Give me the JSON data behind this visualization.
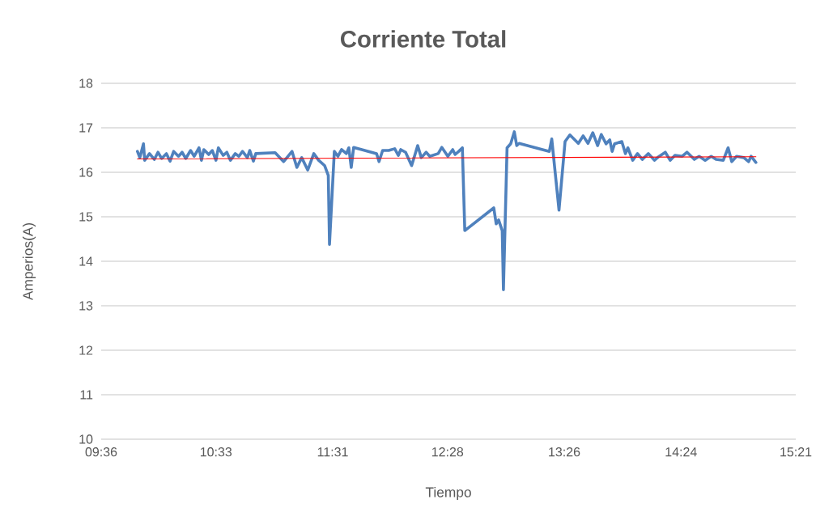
{
  "chart_data": {
    "type": "line",
    "title": "Corriente Total",
    "xlabel": "Tiempo",
    "ylabel": "Amperios(A)",
    "xlim": [
      9.6,
      15.35
    ],
    "ylim": [
      10,
      18
    ],
    "xticks": [
      {
        "value": 9.6,
        "label": "09:36"
      },
      {
        "value": 10.55,
        "label": "10:33"
      },
      {
        "value": 11.5167,
        "label": "11:31"
      },
      {
        "value": 12.4667,
        "label": "12:28"
      },
      {
        "value": 13.4333,
        "label": "13:26"
      },
      {
        "value": 14.4,
        "label": "14:24"
      },
      {
        "value": 15.35,
        "label": "15:21"
      }
    ],
    "yticks": [
      10,
      11,
      12,
      13,
      14,
      15,
      16,
      17,
      18
    ],
    "grid": "y",
    "legend": false,
    "marker": "none",
    "line_style": "solid",
    "series": [
      {
        "color": "#4f81bd",
        "x": [
          9.9,
          9.92,
          9.95,
          9.96,
          10.0,
          10.04,
          10.07,
          10.1,
          10.14,
          10.17,
          10.2,
          10.24,
          10.27,
          10.3,
          10.34,
          10.37,
          10.41,
          10.43,
          10.45,
          10.49,
          10.52,
          10.55,
          10.57,
          10.61,
          10.64,
          10.67,
          10.71,
          10.74,
          10.77,
          10.81,
          10.83,
          10.86,
          10.88,
          11.04,
          11.11,
          11.18,
          11.22,
          11.26,
          11.31,
          11.36,
          11.4,
          11.45,
          11.48,
          11.49,
          11.53,
          11.56,
          11.59,
          11.63,
          11.65,
          11.67,
          11.69,
          11.88,
          11.9,
          11.93,
          11.98,
          12.03,
          12.06,
          12.08,
          12.12,
          12.17,
          12.2,
          12.22,
          12.25,
          12.29,
          12.32,
          12.39,
          12.42,
          12.47,
          12.51,
          12.53,
          12.56,
          12.59,
          12.61,
          12.85,
          12.87,
          12.89,
          12.92,
          12.93,
          12.96,
          12.99,
          13.02,
          13.04,
          13.06,
          13.31,
          13.33,
          13.39,
          13.44,
          13.48,
          13.55,
          13.59,
          13.63,
          13.67,
          13.71,
          13.74,
          13.78,
          13.81,
          13.83,
          13.85,
          13.91,
          13.94,
          13.96,
          14.0,
          14.04,
          14.08,
          14.13,
          14.18,
          14.22,
          14.27,
          14.31,
          14.35,
          14.41,
          14.45,
          14.51,
          14.55,
          14.6,
          14.65,
          14.69,
          14.75,
          14.79,
          14.82,
          14.86,
          14.92,
          14.96,
          14.98,
          15.02
        ],
        "values": [
          16.47,
          16.33,
          16.64,
          16.27,
          16.42,
          16.29,
          16.45,
          16.31,
          16.42,
          16.25,
          16.47,
          16.36,
          16.45,
          16.31,
          16.49,
          16.36,
          16.55,
          16.27,
          16.51,
          16.4,
          16.49,
          16.27,
          16.55,
          16.38,
          16.45,
          16.27,
          16.42,
          16.36,
          16.47,
          16.33,
          16.49,
          16.25,
          16.42,
          16.44,
          16.24,
          16.47,
          16.11,
          16.33,
          16.05,
          16.42,
          16.27,
          16.15,
          15.93,
          14.38,
          16.47,
          16.36,
          16.51,
          16.42,
          16.55,
          16.11,
          16.56,
          16.42,
          16.24,
          16.49,
          16.49,
          16.53,
          16.38,
          16.51,
          16.45,
          16.15,
          16.42,
          16.6,
          16.33,
          16.45,
          16.36,
          16.42,
          16.56,
          16.36,
          16.51,
          16.4,
          16.47,
          16.55,
          14.69,
          15.2,
          14.84,
          14.93,
          14.69,
          13.36,
          16.55,
          16.64,
          16.91,
          16.6,
          16.65,
          16.47,
          16.75,
          15.15,
          16.69,
          16.84,
          16.65,
          16.82,
          16.65,
          16.89,
          16.6,
          16.85,
          16.64,
          16.73,
          16.47,
          16.64,
          16.69,
          16.42,
          16.55,
          16.27,
          16.42,
          16.29,
          16.42,
          16.27,
          16.36,
          16.45,
          16.27,
          16.38,
          16.36,
          16.45,
          16.29,
          16.36,
          16.27,
          16.36,
          16.29,
          16.27,
          16.55,
          16.24,
          16.36,
          16.33,
          16.24,
          16.36,
          16.22
        ]
      },
      {
        "color": "#ff0000",
        "x": [
          9.9,
          15.02
        ],
        "values": [
          16.3,
          16.35
        ]
      }
    ]
  }
}
